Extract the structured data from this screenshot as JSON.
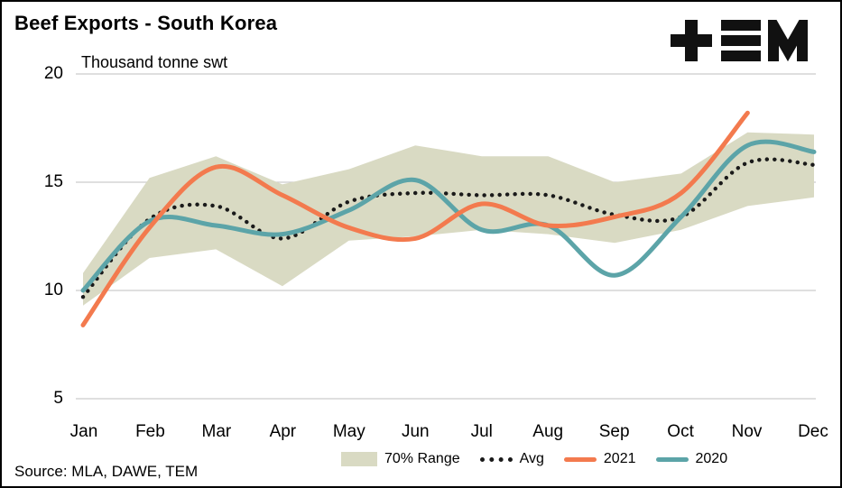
{
  "header": {
    "title": "Beef Exports - South Korea",
    "subtitle": "Thousand tonne swt"
  },
  "footer": {
    "source": "Source: MLA, DAWE, TEM"
  },
  "legend": {
    "items": [
      {
        "label": "70% Range",
        "swatch": "band"
      },
      {
        "label": "Avg",
        "swatch": "dotted"
      },
      {
        "label": "2021",
        "swatch": "line-2021"
      },
      {
        "label": "2020",
        "swatch": "line-2020"
      }
    ]
  },
  "colors": {
    "band": "#d9dac3",
    "avg": "#1a1a1a",
    "y2021": "#f37a4e",
    "y2020": "#5ca4a8",
    "grid": "#cccccc",
    "text": "#000000",
    "logo": "#111111"
  },
  "chart_data": {
    "type": "line",
    "title": "Beef Exports - South Korea",
    "ylabel": "Thousand tonne swt",
    "categories": [
      "Jan",
      "Feb",
      "Mar",
      "Apr",
      "May",
      "Jun",
      "Jul",
      "Aug",
      "Sep",
      "Oct",
      "Nov",
      "Dec"
    ],
    "yticks": [
      20,
      15,
      10,
      5
    ],
    "ylim": [
      5,
      20
    ],
    "grid": "horizontal",
    "legend_position": "bottom",
    "band": {
      "name": "70% Range",
      "upper": [
        10.8,
        15.2,
        16.2,
        14.9,
        15.6,
        16.7,
        16.2,
        16.2,
        15.0,
        15.4,
        17.3,
        17.2
      ],
      "lower": [
        9.3,
        11.5,
        11.9,
        10.2,
        12.3,
        12.5,
        12.8,
        12.6,
        12.2,
        12.8,
        13.9,
        14.3
      ]
    },
    "series": [
      {
        "name": "Avg",
        "style": "dotted",
        "color_key": "avg",
        "values": [
          9.7,
          13.3,
          13.9,
          12.4,
          14.1,
          14.5,
          14.4,
          14.4,
          13.5,
          13.4,
          15.9,
          15.8
        ]
      },
      {
        "name": "2020",
        "style": "solid",
        "color_key": "y2020",
        "values": [
          10.0,
          13.2,
          13.0,
          12.6,
          13.7,
          15.1,
          12.8,
          13.0,
          10.7,
          13.4,
          16.7,
          16.4
        ]
      },
      {
        "name": "2021",
        "style": "solid",
        "color_key": "y2021",
        "values": [
          8.4,
          12.9,
          15.7,
          14.4,
          12.9,
          12.4,
          14.0,
          13.0,
          13.4,
          14.5,
          18.2,
          null
        ]
      }
    ]
  }
}
